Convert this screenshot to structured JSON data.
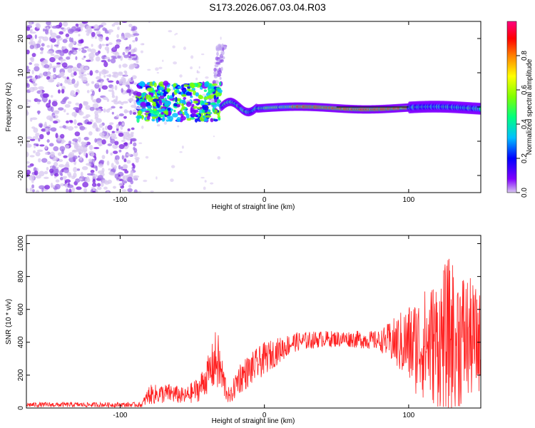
{
  "title": "S173.2026.067.03.04.R03",
  "chart_data": [
    {
      "type": "heatmap",
      "name": "spectrogram",
      "xlabel": "Height of straight line (km)",
      "ylabel": "Frequency (Hz)",
      "xlim": [
        -165,
        150
      ],
      "ylim": [
        -25,
        25
      ],
      "xticks": [
        -100,
        0,
        100
      ],
      "xtick_labels": [
        "-100",
        "0",
        "100"
      ],
      "yticks": [
        -20,
        -10,
        0,
        10,
        20
      ],
      "ytick_labels": [
        "-20",
        "-10",
        "0",
        "10",
        "20"
      ],
      "colorbar": {
        "label": "Normalized spectral amplitude",
        "range": [
          0,
          1
        ],
        "ticks": [
          0.0,
          0.2,
          0.4,
          0.6,
          0.8
        ],
        "tick_labels": [
          "0.0",
          "0.2",
          "0.4",
          "0.6",
          "0.8"
        ],
        "colors": [
          "#d8c8f0",
          "#8000ff",
          "#0000ff",
          "#00bfff",
          "#00ff80",
          "#80ff00",
          "#ffff00",
          "#ff8000",
          "#ff0000",
          "#ff0080"
        ]
      },
      "regions": [
        {
          "name": "noise",
          "x_range": [
            -165,
            -88
          ],
          "f_range": [
            -25,
            25
          ]
        },
        {
          "name": "burst",
          "x_range": [
            -88,
            -30
          ],
          "f_range": [
            -5,
            6
          ]
        },
        {
          "name": "plume",
          "x_range": [
            -40,
            -28
          ],
          "f_range": [
            0,
            18
          ]
        },
        {
          "name": "carrier",
          "x_range": [
            -30,
            150
          ],
          "f_range": [
            -3,
            3
          ]
        }
      ]
    },
    {
      "type": "line",
      "name": "snr",
      "xlabel": "Height of straight line (km)",
      "ylabel": "SNR (10 * v/v)",
      "xlim": [
        -165,
        150
      ],
      "ylim": [
        0,
        1050
      ],
      "xticks": [
        -100,
        0,
        100
      ],
      "xtick_labels": [
        "-100",
        "0",
        "100"
      ],
      "yticks": [
        0,
        200,
        400,
        600,
        800,
        1000
      ],
      "ytick_labels": [
        "0",
        "200",
        "400",
        "600",
        "800",
        "1000"
      ],
      "color": "#ff2020",
      "envelope": [
        {
          "x": -165,
          "base": 20,
          "amp": 15
        },
        {
          "x": -85,
          "base": 20,
          "amp": 15
        },
        {
          "x": -80,
          "base": 80,
          "amp": 60
        },
        {
          "x": -65,
          "base": 90,
          "amp": 60
        },
        {
          "x": -55,
          "base": 70,
          "amp": 50
        },
        {
          "x": -45,
          "base": 120,
          "amp": 80
        },
        {
          "x": -38,
          "base": 220,
          "amp": 120
        },
        {
          "x": -33,
          "base": 300,
          "amp": 200
        },
        {
          "x": -28,
          "base": 150,
          "amp": 100
        },
        {
          "x": -24,
          "base": 60,
          "amp": 40
        },
        {
          "x": -18,
          "base": 180,
          "amp": 100
        },
        {
          "x": -10,
          "base": 230,
          "amp": 100
        },
        {
          "x": 0,
          "base": 300,
          "amp": 100
        },
        {
          "x": 10,
          "base": 350,
          "amp": 80
        },
        {
          "x": 20,
          "base": 400,
          "amp": 60
        },
        {
          "x": 40,
          "base": 420,
          "amp": 50
        },
        {
          "x": 60,
          "base": 420,
          "amp": 50
        },
        {
          "x": 80,
          "base": 410,
          "amp": 60
        },
        {
          "x": 90,
          "base": 400,
          "amp": 150
        },
        {
          "x": 105,
          "base": 380,
          "amp": 300
        },
        {
          "x": 120,
          "base": 400,
          "amp": 400
        },
        {
          "x": 130,
          "base": 450,
          "amp": 500
        },
        {
          "x": 150,
          "base": 400,
          "amp": 300
        }
      ]
    }
  ]
}
